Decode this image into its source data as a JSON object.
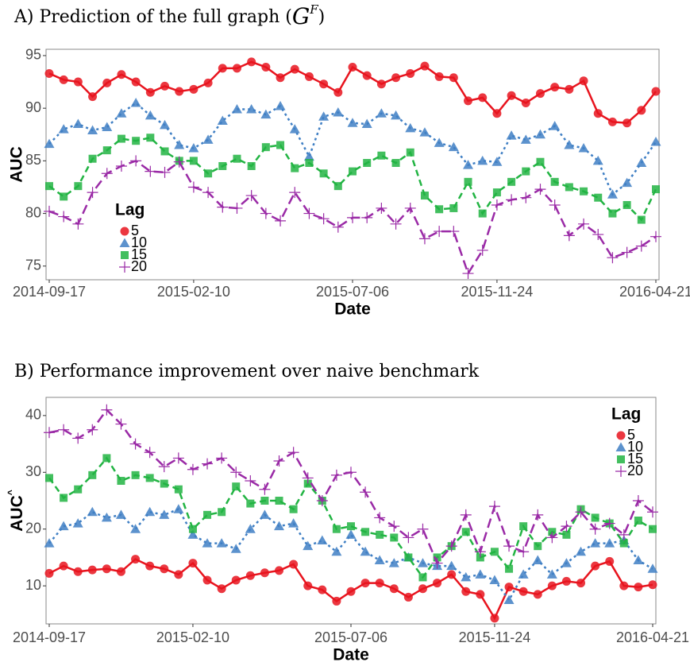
{
  "chart_data": [
    {
      "type": "line",
      "title": [
        "A) Prediction of the full graph (",
        "G",
        "F",
        ")"
      ],
      "x_label": "Date",
      "y_label": "AUC",
      "categories": [
        "2014-09-17",
        null,
        null,
        null,
        null,
        null,
        null,
        null,
        null,
        null,
        "2015-02-10",
        null,
        null,
        null,
        null,
        null,
        null,
        null,
        null,
        null,
        null,
        "2015-07-06",
        null,
        null,
        null,
        null,
        null,
        null,
        null,
        null,
        null,
        "2015-11-24",
        null,
        null,
        null,
        null,
        null,
        null,
        null,
        null,
        null,
        null,
        "2016-04-21"
      ],
      "ylim": [
        73.7,
        95.6
      ],
      "yticks": [
        75,
        80,
        85,
        90,
        95
      ],
      "legend_title": "Lag",
      "legend": "left",
      "series": [
        {
          "name": "5",
          "color": "#e8141e",
          "marker": "circle",
          "dash": "solid",
          "values": [
            93.3,
            92.7,
            92.5,
            91.1,
            92.4,
            93.2,
            92.5,
            91.5,
            92.1,
            91.6,
            91.8,
            92.4,
            93.8,
            93.8,
            94.4,
            93.9,
            92.9,
            93.7,
            93.0,
            92.3,
            91.5,
            93.9,
            93.1,
            92.3,
            92.9,
            93.3,
            94.0,
            93.0,
            92.9,
            90.7,
            91.0,
            89.5,
            91.2,
            90.5,
            91.4,
            92.0,
            91.8,
            92.6,
            89.5,
            88.7,
            88.6,
            89.8,
            91.6
          ]
        },
        {
          "name": "10",
          "color": "#3f7fc4",
          "marker": "triangle",
          "dash": "dotted",
          "values": [
            86.6,
            88.0,
            88.5,
            87.9,
            88.2,
            89.5,
            90.5,
            89.3,
            88.4,
            86.5,
            86.2,
            87.0,
            88.8,
            89.9,
            89.9,
            89.4,
            90.2,
            88.0,
            85.4,
            89.2,
            89.6,
            88.6,
            88.5,
            89.5,
            89.3,
            88.1,
            87.7,
            86.7,
            86.3,
            84.6,
            85.0,
            84.9,
            87.4,
            87.0,
            87.5,
            88.3,
            86.5,
            86.2,
            85.0,
            81.8,
            82.9,
            84.8,
            86.8
          ]
        },
        {
          "name": "15",
          "color": "#22b443",
          "marker": "square",
          "dash": "dashed",
          "values": [
            82.6,
            81.6,
            82.6,
            85.2,
            86.0,
            87.1,
            86.9,
            87.2,
            85.9,
            85.0,
            85.0,
            83.8,
            84.5,
            85.2,
            84.5,
            86.3,
            86.5,
            84.3,
            84.8,
            83.8,
            82.6,
            84.0,
            84.8,
            85.5,
            84.8,
            85.8,
            81.7,
            80.4,
            80.5,
            83.0,
            80.0,
            82.0,
            83.0,
            84.0,
            84.9,
            83.0,
            82.5,
            82.1,
            81.5,
            80.0,
            80.8,
            79.4,
            82.3
          ]
        },
        {
          "name": "20",
          "color": "#9a2aa6",
          "marker": "plus",
          "dash": "longdash",
          "values": [
            80.2,
            79.7,
            79.0,
            82.0,
            83.8,
            84.5,
            85.0,
            84.0,
            83.9,
            84.9,
            82.5,
            82.0,
            80.6,
            80.5,
            81.7,
            80.0,
            79.3,
            82.0,
            80.0,
            79.5,
            78.7,
            79.6,
            79.6,
            80.5,
            79.0,
            80.5,
            77.6,
            78.3,
            78.3,
            74.3,
            76.5,
            80.8,
            81.3,
            81.5,
            82.3,
            80.8,
            77.9,
            79.0,
            78.0,
            75.8,
            76.3,
            76.9,
            77.8
          ]
        }
      ]
    },
    {
      "type": "line",
      "title": [
        "B) Performance improvement over naive benchmark"
      ],
      "x_label": "Date",
      "y_label": [
        "AUC",
        "^"
      ],
      "categories": [
        "2014-09-17",
        null,
        null,
        null,
        null,
        null,
        null,
        null,
        null,
        null,
        "2015-02-10",
        null,
        null,
        null,
        null,
        null,
        null,
        null,
        null,
        null,
        null,
        "2015-07-06",
        null,
        null,
        null,
        null,
        null,
        null,
        null,
        null,
        null,
        "2015-11-24",
        null,
        null,
        null,
        null,
        null,
        null,
        null,
        null,
        null,
        null,
        "2016-04-21"
      ],
      "ylim": [
        3.3,
        43.2
      ],
      "yticks": [
        10,
        20,
        30,
        40
      ],
      "legend_title": "Lag",
      "legend": "right",
      "series": [
        {
          "name": "5",
          "color": "#e8141e",
          "marker": "circle",
          "dash": "solid",
          "values": [
            12.2,
            13.5,
            12.5,
            12.8,
            13.0,
            12.5,
            14.7,
            13.5,
            13.0,
            12.0,
            14.0,
            11.0,
            9.5,
            11.0,
            11.8,
            12.3,
            12.7,
            13.8,
            10.0,
            9.3,
            7.3,
            9.0,
            10.5,
            10.5,
            9.5,
            8.0,
            9.5,
            10.5,
            12.0,
            9.0,
            8.5,
            4.3,
            9.8,
            9.0,
            8.5,
            10.0,
            10.8,
            10.5,
            13.5,
            14.3,
            10.0,
            9.8,
            10.2
          ]
        },
        {
          "name": "10",
          "color": "#3f7fc4",
          "marker": "triangle",
          "dash": "dotted",
          "values": [
            17.5,
            20.5,
            21.0,
            23.0,
            22.0,
            22.5,
            20.0,
            23.0,
            22.5,
            23.5,
            19.0,
            17.5,
            17.5,
            16.5,
            20.0,
            22.5,
            20.5,
            21.0,
            17.0,
            18.0,
            16.0,
            19.0,
            16.0,
            14.5,
            14.0,
            15.0,
            14.0,
            13.5,
            13.5,
            11.5,
            12.0,
            11.0,
            7.5,
            12.0,
            14.5,
            12.0,
            14.0,
            16.0,
            17.5,
            17.5,
            18.0,
            14.5,
            13.0
          ]
        },
        {
          "name": "15",
          "color": "#22b443",
          "marker": "square",
          "dash": "dashed",
          "values": [
            29.0,
            25.5,
            27.0,
            29.5,
            32.5,
            28.5,
            29.5,
            29.0,
            28.0,
            27.0,
            20.0,
            22.5,
            23.0,
            27.5,
            24.5,
            25.0,
            25.0,
            23.5,
            28.0,
            25.0,
            20.0,
            20.5,
            19.5,
            19.0,
            18.5,
            15.0,
            11.5,
            15.0,
            17.0,
            19.5,
            15.0,
            16.0,
            13.0,
            20.5,
            17.0,
            19.5,
            19.0,
            23.5,
            22.0,
            21.0,
            17.5,
            21.5,
            20.0
          ]
        },
        {
          "name": "20",
          "color": "#9a2aa6",
          "marker": "plus",
          "dash": "longdash",
          "values": [
            37.0,
            37.5,
            36.0,
            37.5,
            41.0,
            38.5,
            35.0,
            33.5,
            31.0,
            32.5,
            30.5,
            31.5,
            32.5,
            30.0,
            28.5,
            27.0,
            32.0,
            33.5,
            29.0,
            25.0,
            29.5,
            30.0,
            26.5,
            22.0,
            20.5,
            18.5,
            20.0,
            14.0,
            17.0,
            22.5,
            16.0,
            24.0,
            17.0,
            16.0,
            22.5,
            18.5,
            20.5,
            23.0,
            20.0,
            21.0,
            19.0,
            25.0,
            23.0
          ]
        }
      ]
    }
  ]
}
